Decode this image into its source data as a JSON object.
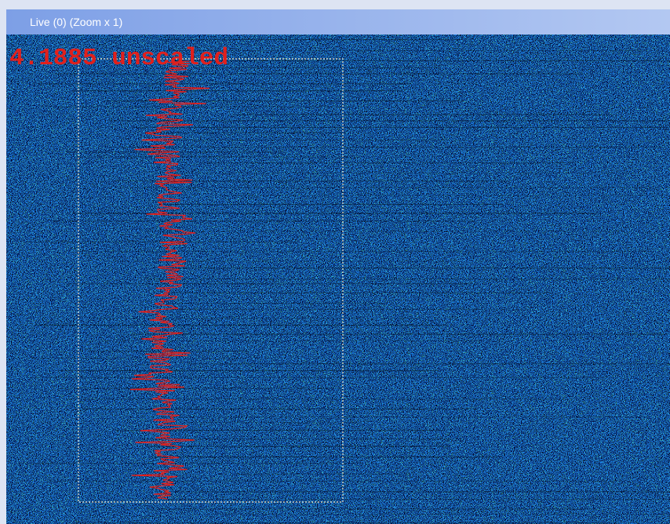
{
  "window": {
    "title": "Live (0) (Zoom x 1)"
  },
  "overlay": {
    "label": "4.1885 unscaled"
  }
}
